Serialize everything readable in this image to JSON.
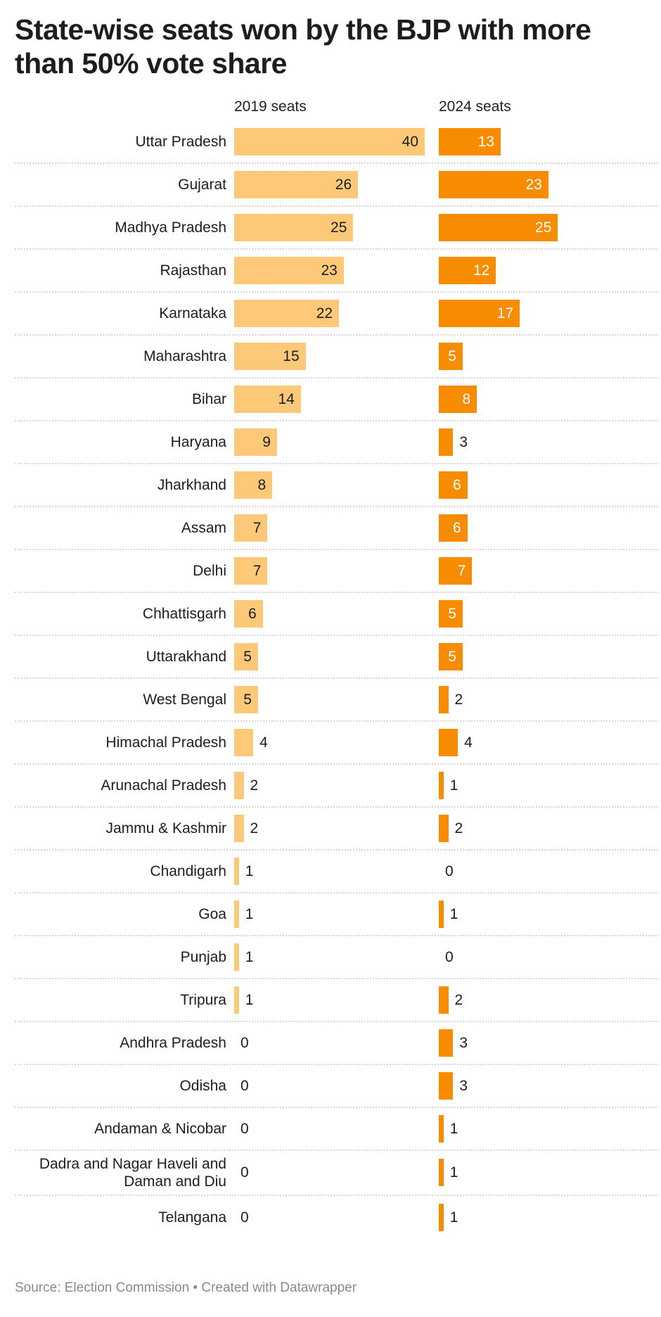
{
  "chart_data": {
    "type": "bar",
    "title": "State-wise seats won by the BJP with more than 50% vote share",
    "categories": [
      "Uttar Pradesh",
      "Gujarat",
      "Madhya Pradesh",
      "Rajasthan",
      "Karnataka",
      "Maharashtra",
      "Bihar",
      "Haryana",
      "Jharkhand",
      "Assam",
      "Delhi",
      "Chhattisgarh",
      "Uttarakhand",
      "West Bengal",
      "Himachal Pradesh",
      "Arunachal Pradesh",
      "Jammu & Kashmir",
      "Chandigarh",
      "Goa",
      "Punjab",
      "Tripura",
      "Andhra Pradesh",
      "Odisha",
      "Andaman & Nicobar",
      "Dadra and Nagar Haveli and Daman and Diu",
      "Telangana"
    ],
    "series": [
      {
        "name": "2019 seats",
        "color": "#fdc878",
        "values": [
          40,
          26,
          25,
          23,
          22,
          15,
          14,
          9,
          8,
          7,
          7,
          6,
          5,
          5,
          4,
          2,
          2,
          1,
          1,
          1,
          1,
          0,
          0,
          0,
          0,
          0
        ]
      },
      {
        "name": "2024 seats",
        "color": "#f78c00",
        "values": [
          13,
          23,
          25,
          12,
          17,
          5,
          8,
          3,
          6,
          6,
          7,
          5,
          5,
          2,
          4,
          1,
          2,
          0,
          1,
          0,
          2,
          3,
          3,
          1,
          1,
          1
        ]
      }
    ],
    "xlim": [
      0,
      40
    ],
    "grid": false,
    "source": "Source: Election Commission • Created with Datawrapper"
  }
}
